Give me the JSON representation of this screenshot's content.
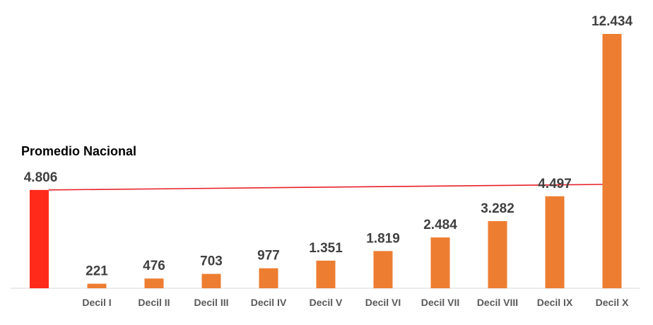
{
  "chart_data": {
    "type": "bar",
    "title": "",
    "xlabel": "",
    "ylabel": "",
    "ylim": [
      0,
      13000
    ],
    "grid": false,
    "legend": "none",
    "national_average": {
      "label": "Promedio Nacional",
      "value": 4806,
      "display": "4.806",
      "color": "#FF2A1A"
    },
    "reference_line_color": "#E8202A",
    "bar_color": "#ED7D31",
    "categories": [
      "Decil I",
      "Decil II",
      "Decil III",
      "Decil IV",
      "Decil V",
      "Decil VI",
      "Decil VII",
      "Decil VIII",
      "Decil IX",
      "Decil X"
    ],
    "values": [
      221,
      476,
      703,
      977,
      1351,
      1819,
      2484,
      3282,
      4497,
      12434
    ],
    "value_labels": [
      "221",
      "476",
      "703",
      "977",
      "1.351",
      "1.819",
      "2.484",
      "3.282",
      "4.497",
      "12.434"
    ]
  }
}
